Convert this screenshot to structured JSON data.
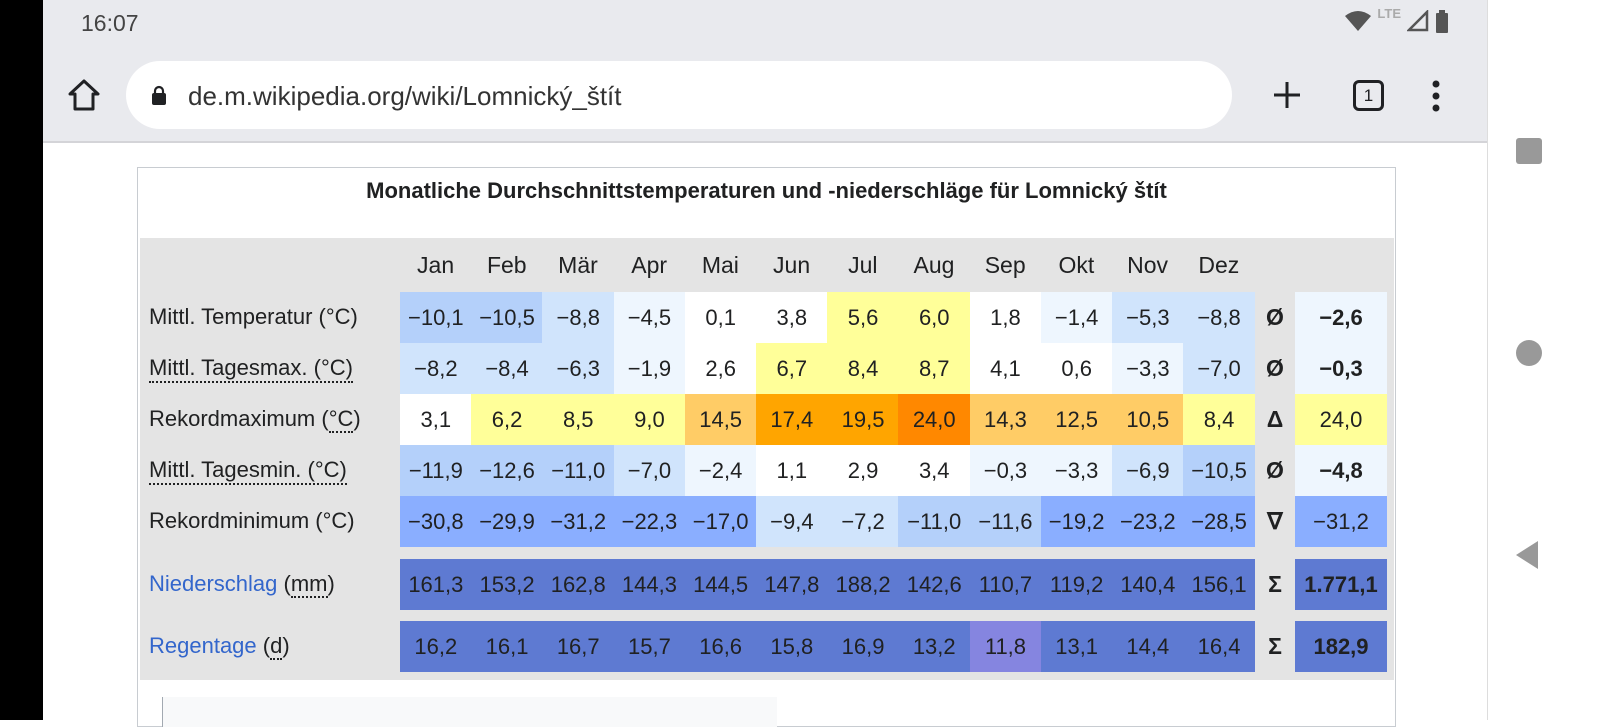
{
  "status": {
    "time": "16:07",
    "network": "LTE"
  },
  "browser": {
    "url": "de.m.wikipedia.org/wiki/Lomnický_štít",
    "tab_count": "1"
  },
  "table": {
    "title": "Monatliche Durchschnittstemperaturen und -niederschläge für Lomnický štít",
    "months": [
      "Jan",
      "Feb",
      "Mär",
      "Apr",
      "Mai",
      "Jun",
      "Jul",
      "Aug",
      "Sep",
      "Okt",
      "Nov",
      "Dez"
    ],
    "palette": {
      "b0": "#8aaeff",
      "b1": "#b4d0fa",
      "b2": "#d0e4fc",
      "b3": "#eef6fe",
      "w": "#ffffff",
      "y": "#ffff99",
      "o1": "#ffcc66",
      "o2": "#ffa500",
      "o3": "#ff8800",
      "p": "#5e7ad2",
      "p2": "#8585e0"
    },
    "rows": [
      {
        "label": "Mittl. Temperatur (°C)",
        "style": "plain",
        "symbol": "Ø",
        "avg": "−2,6",
        "avg_bold": true,
        "avg_color": "b3",
        "values": [
          "−10,1",
          "−10,5",
          "−8,8",
          "−4,5",
          "0,1",
          "3,8",
          "5,6",
          "6,0",
          "1,8",
          "−1,4",
          "−5,3",
          "−8,8"
        ],
        "colors": [
          "b1",
          "b1",
          "b2",
          "b3",
          "w",
          "w",
          "y",
          "y",
          "w",
          "b3",
          "b2",
          "b2"
        ]
      },
      {
        "label": "Mittl. Tagesmax. (°C)",
        "style": "dotted",
        "symbol": "Ø",
        "avg": "−0,3",
        "avg_bold": true,
        "avg_color": "b3",
        "values": [
          "−8,2",
          "−8,4",
          "−6,3",
          "−1,9",
          "2,6",
          "6,7",
          "8,4",
          "8,7",
          "4,1",
          "0,6",
          "−3,3",
          "−7,0"
        ],
        "colors": [
          "b2",
          "b2",
          "b2",
          "b3",
          "w",
          "y",
          "y",
          "y",
          "w",
          "w",
          "b3",
          "b2"
        ]
      },
      {
        "label_main": "Rekordmaximum (",
        "label_unit": "°C",
        "label_end": ")",
        "label": "Rekordmaximum (°C)",
        "style": "unit",
        "symbol": "Δ",
        "avg": "24,0",
        "avg_bold": false,
        "avg_color": "y",
        "values": [
          "3,1",
          "6,2",
          "8,5",
          "9,0",
          "14,5",
          "17,4",
          "19,5",
          "24,0",
          "14,3",
          "12,5",
          "10,5",
          "8,4"
        ],
        "colors": [
          "w",
          "y",
          "y",
          "y",
          "o1",
          "o2",
          "o2",
          "o3",
          "o1",
          "o1",
          "o1",
          "y"
        ]
      },
      {
        "label": "Mittl. Tagesmin. (°C)",
        "style": "dotted",
        "symbol": "Ø",
        "avg": "−4,8",
        "avg_bold": true,
        "avg_color": "b3",
        "values": [
          "−11,9",
          "−12,6",
          "−11,0",
          "−7,0",
          "−2,4",
          "1,1",
          "2,9",
          "3,4",
          "−0,3",
          "−3,3",
          "−6,9",
          "−10,5"
        ],
        "colors": [
          "b1",
          "b1",
          "b1",
          "b2",
          "b3",
          "w",
          "w",
          "w",
          "b3",
          "b3",
          "b2",
          "b1"
        ]
      },
      {
        "label": "Rekordminimum (°C)",
        "style": "plain",
        "symbol": "∇",
        "avg": "−31,2",
        "avg_bold": false,
        "avg_color": "b0",
        "values": [
          "−30,8",
          "−29,9",
          "−31,2",
          "−22,3",
          "−17,0",
          "−9,4",
          "−7,2",
          "−11,0",
          "−11,6",
          "−19,2",
          "−23,2",
          "−28,5"
        ],
        "colors": [
          "b0",
          "b0",
          "b0",
          "b0",
          "b0",
          "b2",
          "b2",
          "b1",
          "b1",
          "b0",
          "b0",
          "b0"
        ]
      },
      {
        "label_main": "Niederschlag",
        "label_unit": "mm",
        "label": "Niederschlag (mm)",
        "style": "link",
        "symbol": "Σ",
        "avg": "1.771,1",
        "avg_bold": true,
        "avg_color": "p",
        "values": [
          "161,3",
          "153,2",
          "162,8",
          "144,3",
          "144,5",
          "147,8",
          "188,2",
          "142,6",
          "110,7",
          "119,2",
          "140,4",
          "156,1"
        ],
        "colors": [
          "p",
          "p",
          "p",
          "p",
          "p",
          "p",
          "p",
          "p",
          "p",
          "p",
          "p",
          "p"
        ]
      },
      {
        "label_main": "Regentage",
        "label_unit": "d",
        "label": "Regentage (d)",
        "style": "link",
        "symbol": "Σ",
        "avg": "182,9",
        "avg_bold": true,
        "avg_color": "p",
        "values": [
          "16,2",
          "16,1",
          "16,7",
          "15,7",
          "16,6",
          "15,8",
          "16,9",
          "13,2",
          "11,8",
          "13,1",
          "14,4",
          "16,4"
        ],
        "colors": [
          "p",
          "p",
          "p",
          "p",
          "p",
          "p",
          "p",
          "p",
          "p2",
          "p",
          "p",
          "p"
        ]
      }
    ]
  }
}
